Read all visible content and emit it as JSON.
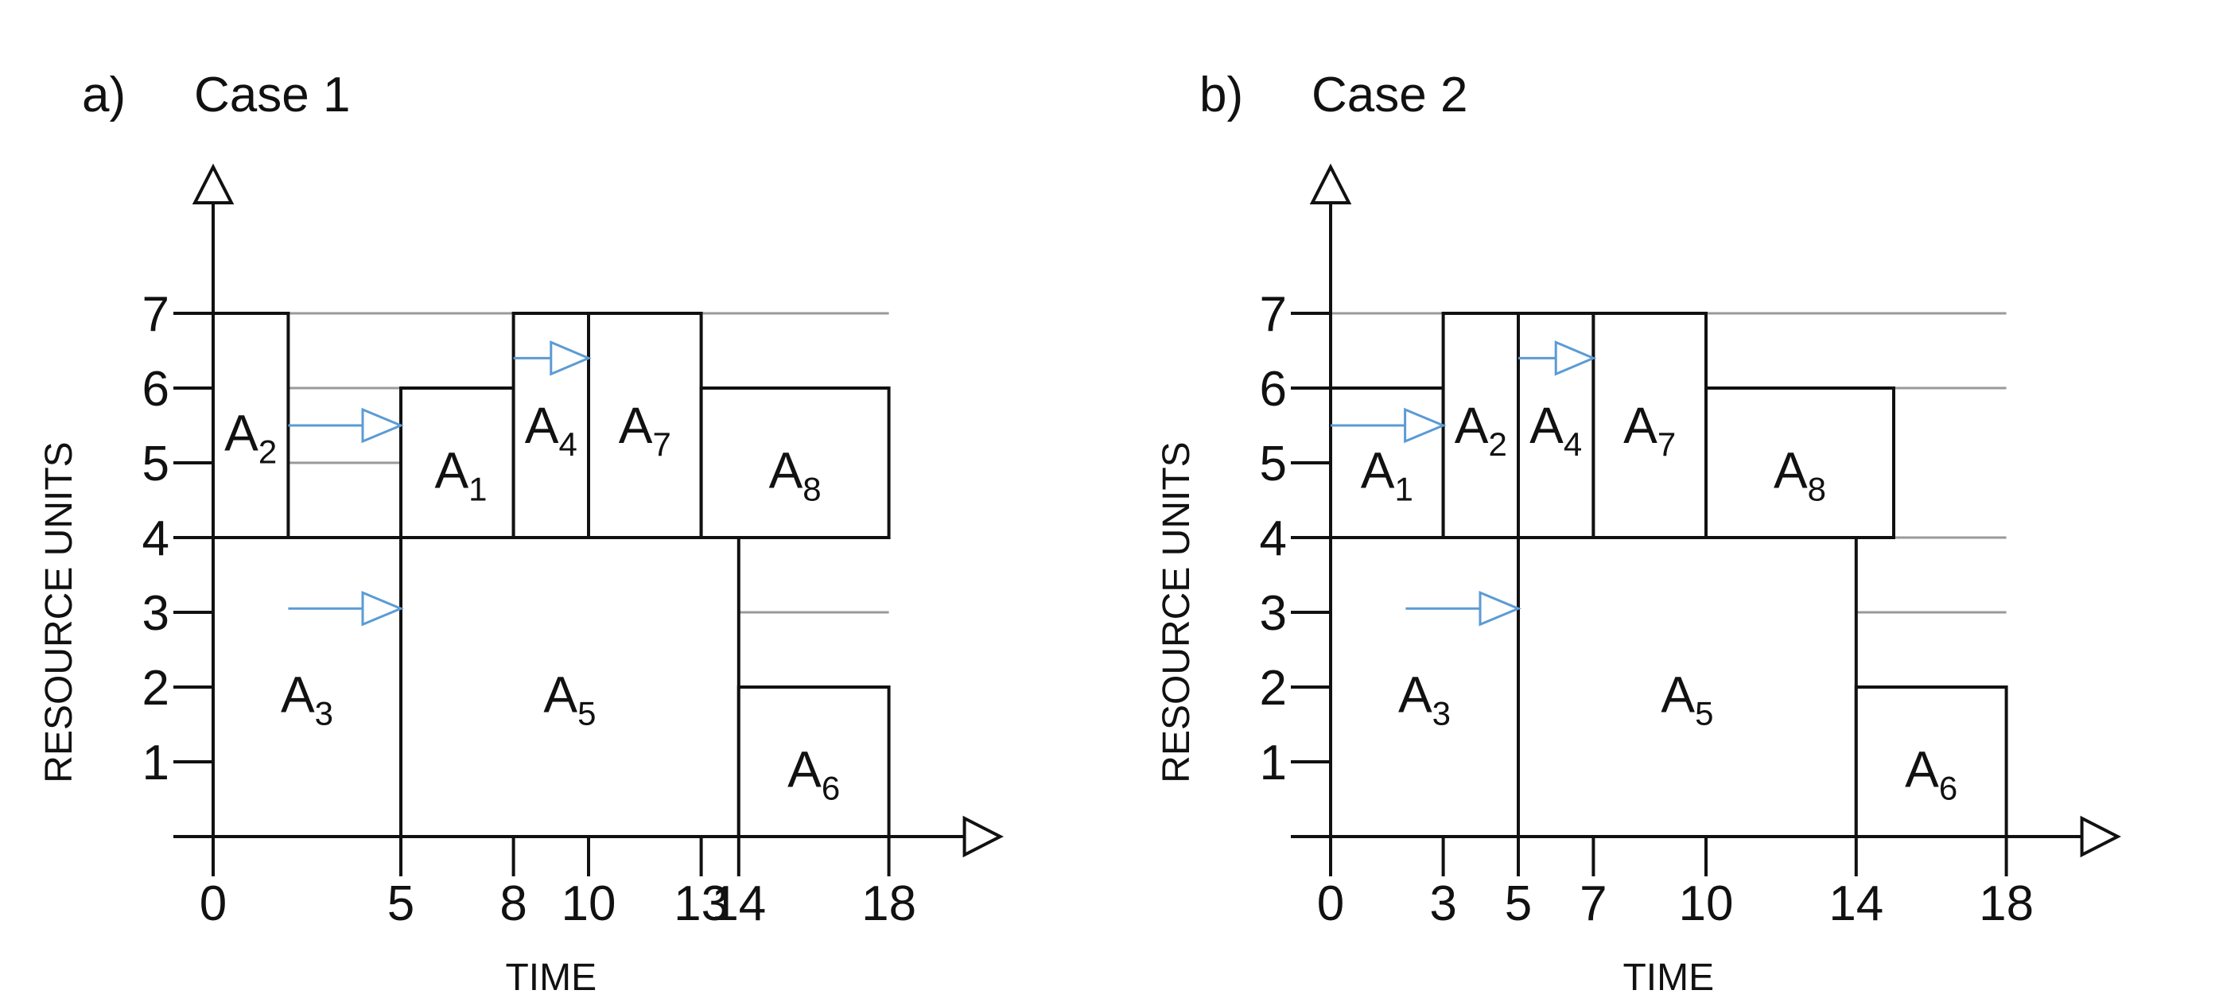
{
  "diagrams": [
    {
      "letter": "a)",
      "title": "Case 1",
      "ylabel": "RESOURCE UNITS",
      "xlabel": "TIME",
      "y_ticks": [
        "1",
        "2",
        "3",
        "4",
        "5",
        "6",
        "7"
      ],
      "x_ticks": [
        "0",
        "5",
        "8",
        "10",
        "13",
        "14",
        "18"
      ],
      "activities": [
        {
          "letter": "A",
          "sub": "2",
          "start": 0,
          "end": 2,
          "bottom": 4,
          "top": 7,
          "label_at": [
            1,
            5.4
          ]
        },
        {
          "letter": "A",
          "sub": "1",
          "start": 5,
          "end": 8,
          "bottom": 4,
          "top": 6,
          "label_at": [
            6.6,
            4.9
          ]
        },
        {
          "letter": "A",
          "sub": "4",
          "start": 8,
          "end": 10,
          "bottom": 4,
          "top": 7,
          "label_at": [
            9,
            5.5
          ]
        },
        {
          "letter": "A",
          "sub": "7",
          "start": 10,
          "end": 13,
          "bottom": 4,
          "top": 7,
          "label_at": [
            11.5,
            5.5
          ]
        },
        {
          "letter": "A",
          "sub": "8",
          "start": 13,
          "end": 18,
          "bottom": 4,
          "top": 6,
          "label_at": [
            15.5,
            4.9
          ]
        },
        {
          "letter": "A",
          "sub": "3",
          "start": 0,
          "end": 5,
          "bottom": 0,
          "top": 4,
          "label_at": [
            2.5,
            1.9
          ]
        },
        {
          "letter": "A",
          "sub": "5",
          "start": 5,
          "end": 14,
          "bottom": 0,
          "top": 4,
          "label_at": [
            9.5,
            1.9
          ]
        },
        {
          "letter": "A",
          "sub": "6",
          "start": 14,
          "end": 18,
          "bottom": 0,
          "top": 2,
          "label_at": [
            16,
            0.9
          ]
        }
      ],
      "gridlines": [
        {
          "y": 7,
          "from": 2,
          "to": 18
        },
        {
          "y": 6,
          "from": 2,
          "to": 5
        },
        {
          "y": 5,
          "from": 2,
          "to": 5
        },
        {
          "y": 3,
          "from": 14,
          "to": 18
        }
      ],
      "shifts": [
        {
          "from": [
            2,
            5.5
          ],
          "to": [
            5,
            5.5
          ]
        },
        {
          "from": [
            2,
            3.05
          ],
          "to": [
            5,
            3.05
          ]
        },
        {
          "from": [
            8,
            6.4
          ],
          "to": [
            10,
            6.4
          ]
        }
      ]
    },
    {
      "letter": "b)",
      "title": "Case 2",
      "ylabel": "RESOURCE UNITS",
      "xlabel": "TIME",
      "y_ticks": [
        "1",
        "2",
        "3",
        "4",
        "5",
        "6",
        "7"
      ],
      "x_ticks": [
        "0",
        "3",
        "5",
        "7",
        "10",
        "14",
        "18"
      ],
      "activities": [
        {
          "letter": "A",
          "sub": "1",
          "start": 0,
          "end": 3,
          "bottom": 4,
          "top": 6,
          "label_at": [
            1.5,
            4.9
          ]
        },
        {
          "letter": "A",
          "sub": "2",
          "start": 3,
          "end": 5,
          "bottom": 4,
          "top": 7,
          "label_at": [
            4,
            5.5
          ]
        },
        {
          "letter": "A",
          "sub": "4",
          "start": 5,
          "end": 7,
          "bottom": 4,
          "top": 7,
          "label_at": [
            6,
            5.5
          ]
        },
        {
          "letter": "A",
          "sub": "7",
          "start": 7,
          "end": 10,
          "bottom": 4,
          "top": 7,
          "label_at": [
            8.5,
            5.5
          ]
        },
        {
          "letter": "A",
          "sub": "8",
          "start": 10,
          "end": 15,
          "bottom": 4,
          "top": 6,
          "label_at": [
            12.5,
            4.9
          ]
        },
        {
          "letter": "A",
          "sub": "3",
          "start": 0,
          "end": 5,
          "bottom": 0,
          "top": 4,
          "label_at": [
            2.5,
            1.9
          ]
        },
        {
          "letter": "A",
          "sub": "5",
          "start": 5,
          "end": 14,
          "bottom": 0,
          "top": 4,
          "label_at": [
            9.5,
            1.9
          ]
        },
        {
          "letter": "A",
          "sub": "6",
          "start": 14,
          "end": 18,
          "bottom": 0,
          "top": 2,
          "label_at": [
            16,
            0.9
          ]
        }
      ],
      "gridlines": [
        {
          "y": 7,
          "from": 0,
          "to": 18
        },
        {
          "y": 6,
          "from": 0,
          "to": 18
        },
        {
          "y": 4,
          "from": 0,
          "to": 18
        },
        {
          "y": 3,
          "from": 14,
          "to": 18
        }
      ],
      "shifts": [
        {
          "from": [
            0,
            5.5
          ],
          "to": [
            3,
            5.5
          ]
        },
        {
          "from": [
            2,
            3.05
          ],
          "to": [
            5,
            3.05
          ]
        },
        {
          "from": [
            5,
            6.4
          ],
          "to": [
            7,
            6.4
          ]
        }
      ]
    }
  ],
  "colors": {
    "shift_arrow": "#5b9bd5",
    "gridline": "#9a9a9a",
    "outline": "#111111"
  }
}
